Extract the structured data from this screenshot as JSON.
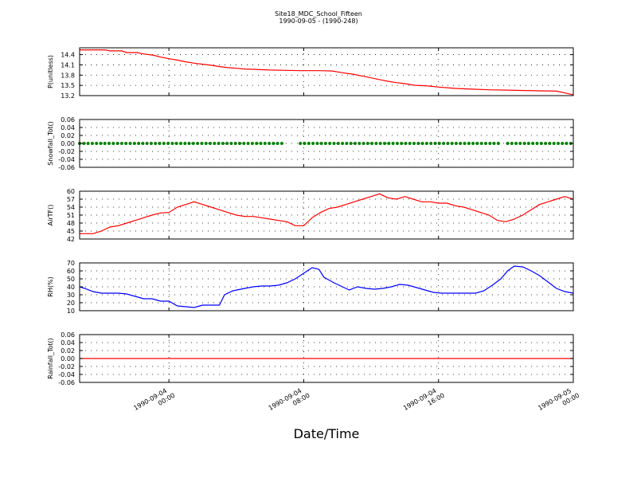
{
  "chart_data": {
    "type": "line",
    "title": "Site18_MDC_School_Fifteen",
    "subtitle": "1990-09-05 - (1990-248)",
    "xlabel": "Date/Time",
    "x_ticks": [
      {
        "hour": 0,
        "line1": "1990-09-04",
        "line2": "00:00"
      },
      {
        "hour": 8,
        "line1": "1990-09-04",
        "line2": "08:00"
      },
      {
        "hour": 16,
        "line1": "1990-09-04",
        "line2": "16:00"
      },
      {
        "hour": 24,
        "line1": "1990-09-05",
        "line2": "00:00"
      }
    ],
    "xlim_hours": [
      -5.3,
      24
    ],
    "grid": true,
    "colors": {
      "pressure": "#ff0000",
      "snowfall": "#008000",
      "airtf": "#ff0000",
      "rh": "#0000ff",
      "rainfall": "#ff0000"
    },
    "panels": [
      {
        "id": "pressure",
        "ylabel": "P(unitless)",
        "ylim": [
          13.2,
          14.6
        ],
        "ytick_labels": [
          "14.4",
          "14.1",
          "13.8",
          "13.5",
          "13.2"
        ],
        "ytick_values": [
          14.4,
          14.1,
          13.8,
          13.5,
          13.2
        ],
        "style": "line",
        "color": "#ff0000",
        "points": [
          [
            -5.3,
            14.54
          ],
          [
            -3.8,
            14.54
          ],
          [
            -3.5,
            14.51
          ],
          [
            -2.8,
            14.51
          ],
          [
            -2.5,
            14.46
          ],
          [
            -1.9,
            14.46
          ],
          [
            -1.5,
            14.42
          ],
          [
            -0.9,
            14.38
          ],
          [
            -0.5,
            14.33
          ],
          [
            0,
            14.28
          ],
          [
            0.5,
            14.24
          ],
          [
            1,
            14.19
          ],
          [
            1.5,
            14.15
          ],
          [
            2,
            14.12
          ],
          [
            2.5,
            14.09
          ],
          [
            3,
            14.05
          ],
          [
            3.5,
            14.02
          ],
          [
            4,
            14.0
          ],
          [
            4.5,
            13.98
          ],
          [
            5,
            13.97
          ],
          [
            6,
            13.95
          ],
          [
            7,
            13.94
          ],
          [
            7.8,
            13.93
          ],
          [
            8.2,
            13.93
          ],
          [
            9,
            13.93
          ],
          [
            9.7,
            13.92
          ],
          [
            10.3,
            13.87
          ],
          [
            11,
            13.82
          ],
          [
            11.5,
            13.77
          ],
          [
            12,
            13.72
          ],
          [
            12.5,
            13.67
          ],
          [
            13,
            13.62
          ],
          [
            13.5,
            13.58
          ],
          [
            14,
            13.55
          ],
          [
            14.6,
            13.5
          ],
          [
            15.2,
            13.49
          ],
          [
            15.6,
            13.47
          ],
          [
            16,
            13.45
          ],
          [
            16.5,
            13.43
          ],
          [
            17,
            13.41
          ],
          [
            18,
            13.39
          ],
          [
            19,
            13.37
          ],
          [
            20,
            13.36
          ],
          [
            22,
            13.34
          ],
          [
            23,
            13.33
          ],
          [
            23.5,
            13.28
          ],
          [
            24,
            13.22
          ]
        ]
      },
      {
        "id": "snowfall",
        "ylabel": "Snowfall_Tot()",
        "ylim": [
          -0.06,
          0.06
        ],
        "ytick_labels": [
          "0.06",
          "0.04",
          "0.02",
          "0.00",
          "-0.02",
          "-0.04",
          "-0.06"
        ],
        "ytick_values": [
          0.06,
          0.04,
          0.02,
          0.0,
          -0.02,
          -0.04,
          -0.06
        ],
        "style": "dots",
        "color": "#008000",
        "segments": [
          [
            -5.3,
            6.7
          ],
          [
            7.8,
            19.6
          ],
          [
            20.1,
            24
          ]
        ],
        "step_hours": 0.25,
        "value": 0.0
      },
      {
        "id": "airtf",
        "ylabel": "AirTF()",
        "ylim": [
          42,
          60
        ],
        "ytick_labels": [
          "60",
          "57",
          "54",
          "51",
          "48",
          "45",
          "42"
        ],
        "ytick_values": [
          60,
          57,
          54,
          51,
          48,
          45,
          42
        ],
        "style": "line",
        "color": "#ff0000",
        "points": [
          [
            -5.3,
            44
          ],
          [
            -4.5,
            44
          ],
          [
            -4,
            45
          ],
          [
            -3.5,
            46.5
          ],
          [
            -3,
            47
          ],
          [
            -2.5,
            48
          ],
          [
            -2,
            49
          ],
          [
            -1.5,
            50
          ],
          [
            -1,
            51
          ],
          [
            -0.5,
            51.8
          ],
          [
            0,
            52
          ],
          [
            0.5,
            54
          ],
          [
            1,
            55
          ],
          [
            1.5,
            56
          ],
          [
            2,
            55
          ],
          [
            2.5,
            54
          ],
          [
            3,
            53
          ],
          [
            3.5,
            52
          ],
          [
            4,
            51
          ],
          [
            4.5,
            50.5
          ],
          [
            5,
            50.5
          ],
          [
            5.5,
            50
          ],
          [
            6,
            49.5
          ],
          [
            6.5,
            49
          ],
          [
            7,
            48.5
          ],
          [
            7.5,
            47
          ],
          [
            8,
            47
          ],
          [
            8.5,
            50
          ],
          [
            9,
            52
          ],
          [
            9.5,
            53.5
          ],
          [
            10,
            54
          ],
          [
            10.5,
            55
          ],
          [
            11,
            56
          ],
          [
            11.5,
            57
          ],
          [
            12,
            58
          ],
          [
            12.5,
            59
          ],
          [
            13,
            57.5
          ],
          [
            13.5,
            57
          ],
          [
            14,
            58
          ],
          [
            14.5,
            57
          ],
          [
            15,
            56
          ],
          [
            15.5,
            56
          ],
          [
            16,
            55.5
          ],
          [
            16.5,
            55.5
          ],
          [
            17,
            54.5
          ],
          [
            17.5,
            54
          ],
          [
            18,
            53
          ],
          [
            18.5,
            52
          ],
          [
            19,
            51
          ],
          [
            19.5,
            49
          ],
          [
            20,
            48.5
          ],
          [
            20.5,
            49.5
          ],
          [
            21,
            51
          ],
          [
            21.5,
            53
          ],
          [
            22,
            55
          ],
          [
            22.5,
            56
          ],
          [
            23,
            57
          ],
          [
            23.5,
            58
          ],
          [
            24,
            57
          ]
        ]
      },
      {
        "id": "rh",
        "ylabel": "RH(%)",
        "ylim": [
          10,
          70
        ],
        "ytick_labels": [
          "70",
          "60",
          "50",
          "40",
          "30",
          "20",
          "10"
        ],
        "ytick_values": [
          70,
          60,
          50,
          40,
          30,
          20,
          10
        ],
        "style": "line",
        "color": "#0000ff",
        "points": [
          [
            -5.3,
            40
          ],
          [
            -5,
            38
          ],
          [
            -4.5,
            34
          ],
          [
            -4,
            32
          ],
          [
            -3.5,
            32
          ],
          [
            -3,
            32
          ],
          [
            -2.5,
            31
          ],
          [
            -2,
            28
          ],
          [
            -1.5,
            25
          ],
          [
            -1,
            25
          ],
          [
            -0.5,
            22
          ],
          [
            0,
            22
          ],
          [
            0.5,
            16
          ],
          [
            1,
            15
          ],
          [
            1.5,
            14
          ],
          [
            2,
            17
          ],
          [
            2.5,
            17
          ],
          [
            3,
            17
          ],
          [
            3.3,
            30
          ],
          [
            3.8,
            35
          ],
          [
            4.5,
            38
          ],
          [
            5,
            40
          ],
          [
            5.5,
            41
          ],
          [
            6,
            41
          ],
          [
            6.5,
            42
          ],
          [
            7,
            45
          ],
          [
            7.5,
            50
          ],
          [
            8,
            57
          ],
          [
            8.5,
            64
          ],
          [
            8.9,
            62
          ],
          [
            9.2,
            52
          ],
          [
            9.8,
            45
          ],
          [
            10.3,
            40
          ],
          [
            10.7,
            36
          ],
          [
            11.2,
            40
          ],
          [
            11.7,
            38
          ],
          [
            12.2,
            37
          ],
          [
            12.7,
            38
          ],
          [
            13.2,
            40
          ],
          [
            13.7,
            43
          ],
          [
            14.2,
            42
          ],
          [
            14.7,
            39
          ],
          [
            15.2,
            36
          ],
          [
            15.7,
            33
          ],
          [
            16.2,
            32
          ],
          [
            16.7,
            32
          ],
          [
            17.2,
            32
          ],
          [
            17.7,
            32
          ],
          [
            18.2,
            32
          ],
          [
            18.7,
            35
          ],
          [
            19.2,
            42
          ],
          [
            19.7,
            50
          ],
          [
            20.1,
            60
          ],
          [
            20.5,
            66
          ],
          [
            21,
            65
          ],
          [
            21.5,
            60
          ],
          [
            22,
            54
          ],
          [
            22.5,
            46
          ],
          [
            23,
            38
          ],
          [
            23.5,
            34
          ],
          [
            24,
            32
          ]
        ]
      },
      {
        "id": "rainfall",
        "ylabel": "Rainfall_Tot()",
        "ylim": [
          -0.06,
          0.06
        ],
        "ytick_labels": [
          "0.06",
          "0.04",
          "0.02",
          "0.00",
          "-0.02",
          "-0.04",
          "-0.06"
        ],
        "ytick_values": [
          0.06,
          0.04,
          0.02,
          0.0,
          -0.02,
          -0.04,
          -0.06
        ],
        "style": "line",
        "color": "#ff0000",
        "points": [
          [
            -5.3,
            0.0
          ],
          [
            24,
            0.0
          ]
        ]
      }
    ]
  }
}
